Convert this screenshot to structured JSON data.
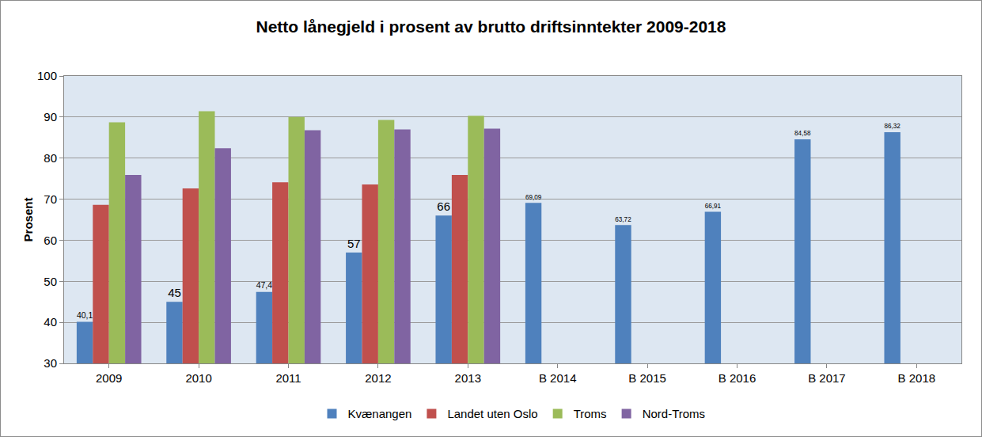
{
  "chart_data": {
    "type": "bar",
    "title": "Netto lånegjeld i prosent av brutto driftsinntekter 2009-2018",
    "y_label": "Prosent",
    "categories": [
      "2009",
      "2010",
      "2011",
      "2012",
      "2013",
      "B 2014",
      "B 2015",
      "B 2016",
      "B 2017",
      "B 2018"
    ],
    "series": [
      {
        "name": "Kvænangen",
        "color": "#4f81bd",
        "values": [
          40.1,
          45,
          47.4,
          57,
          66,
          69.09,
          63.72,
          66.91,
          84.58,
          86.32
        ],
        "value_labels": [
          "40,1",
          "45",
          "47,4",
          "57",
          "66",
          "69,09",
          "63,72",
          "66,91",
          "84,58",
          "86,32"
        ],
        "data_labels": true
      },
      {
        "name": "Landet uten Oslo",
        "color": "#c0504d",
        "values": [
          68.6,
          72.6,
          74.1,
          73.6,
          75.9,
          null,
          null,
          null,
          null,
          null
        ]
      },
      {
        "name": "Troms",
        "color": "#9bbb59",
        "values": [
          88.7,
          91.4,
          90.0,
          89.3,
          90.3,
          null,
          null,
          null,
          null,
          null
        ]
      },
      {
        "name": "Nord-Troms",
        "color": "#8064a2",
        "values": [
          75.9,
          82.4,
          86.8,
          87.0,
          87.2,
          null,
          null,
          null,
          null,
          null
        ]
      }
    ],
    "ylim": [
      30,
      100
    ],
    "yticks": [
      30,
      40,
      50,
      60,
      70,
      80,
      90,
      100
    ],
    "grid": true,
    "legend": "bottom"
  }
}
